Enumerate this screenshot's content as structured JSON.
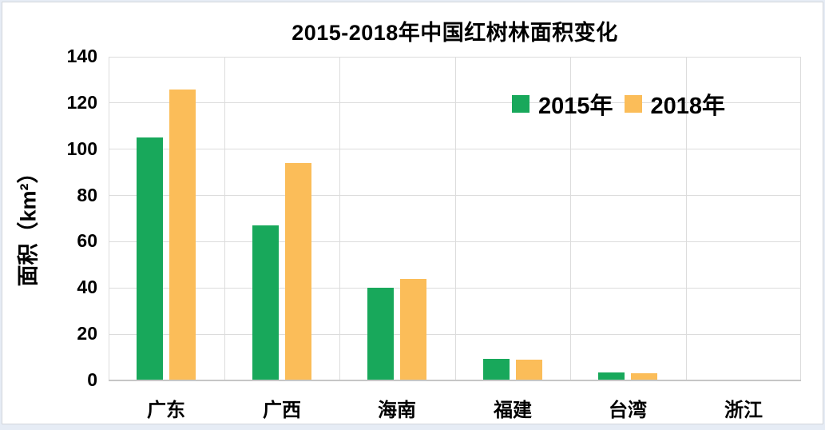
{
  "chart_data": {
    "type": "bar",
    "title": "2015-2018年中国红树林面积变化",
    "xlabel": "",
    "ylabel": "面积（km²）",
    "categories": [
      "广东",
      "广西",
      "海南",
      "福建",
      "台湾",
      "浙江"
    ],
    "series": [
      {
        "name": "2015年",
        "color": "#18A85B",
        "values": [
          105,
          67,
          40,
          9.5,
          3.5,
          0.2
        ]
      },
      {
        "name": "2018年",
        "color": "#FBBD59",
        "values": [
          126,
          94,
          44,
          9,
          3,
          0.5
        ]
      }
    ],
    "y_ticks": [
      0,
      20,
      40,
      60,
      80,
      100,
      120,
      140
    ],
    "ylim": [
      0,
      140
    ],
    "grid": "both",
    "legend_position": "top-right"
  },
  "colors": {
    "series_2015": "#18A85B",
    "series_2018": "#FBBD59",
    "gridline": "#dcdcdc",
    "axis_line": "#c6c6c6",
    "text": "#000000",
    "chart_background": "#ffffff",
    "page_background": "#e6ecf5"
  }
}
